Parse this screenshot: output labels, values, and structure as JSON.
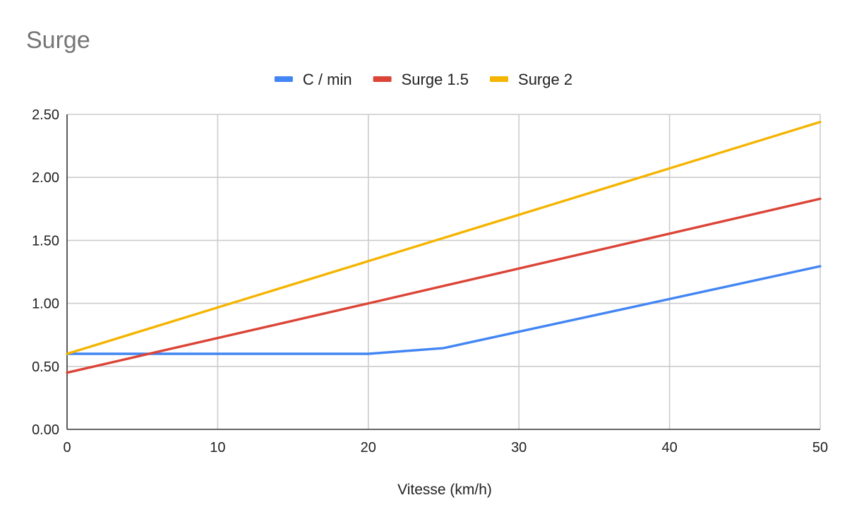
{
  "chart_data": {
    "type": "line",
    "title": "Surge",
    "xlabel": "Vitesse (km/h)",
    "ylabel": "",
    "xlim": [
      0,
      50
    ],
    "ylim": [
      0,
      2.5
    ],
    "x_ticks": [
      0,
      10,
      20,
      30,
      40,
      50
    ],
    "y_ticks": [
      0,
      0.5,
      1,
      1.5,
      2,
      2.5
    ],
    "x_tick_labels": [
      "0",
      "10",
      "20",
      "30",
      "40",
      "50"
    ],
    "y_tick_labels": [
      "0.00",
      "0.50",
      "1.00",
      "1.50",
      "2.00",
      "2.50"
    ],
    "grid": true,
    "legend_position": "top",
    "series": [
      {
        "name": "C / min",
        "color": "#4285F4",
        "points": [
          [
            0,
            0.6
          ],
          [
            20,
            0.6
          ],
          [
            25,
            0.645
          ],
          [
            30,
            0.775
          ],
          [
            40,
            1.035
          ],
          [
            50,
            1.295
          ]
        ]
      },
      {
        "name": "Surge 1.5",
        "color": "#DB4437",
        "points": [
          [
            0,
            0.45
          ],
          [
            20,
            1.0
          ],
          [
            50,
            1.83
          ]
        ]
      },
      {
        "name": "Surge 2",
        "color": "#F4B400",
        "points": [
          [
            0,
            0.6
          ],
          [
            20,
            1.335
          ],
          [
            50,
            2.44
          ]
        ]
      }
    ]
  }
}
